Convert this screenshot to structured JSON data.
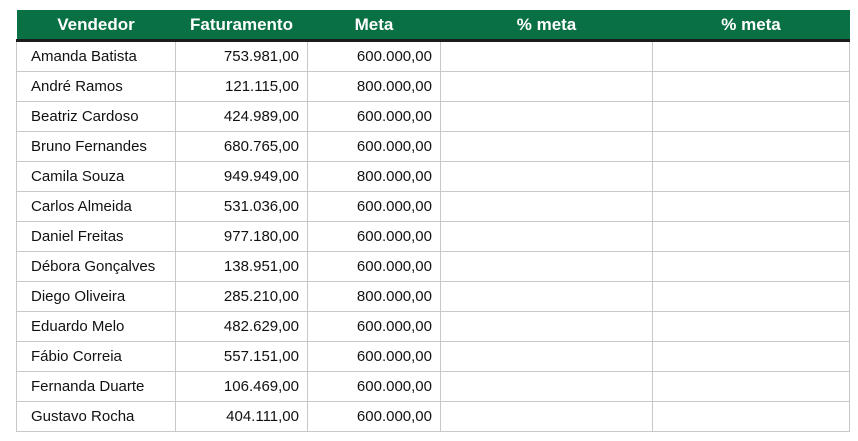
{
  "table": {
    "headers": [
      "Vendedor",
      "Faturamento",
      "Meta",
      "% meta",
      "% meta"
    ],
    "rows": [
      {
        "vendedor": "Amanda Batista",
        "faturamento": "753.981,00",
        "meta": "600.000,00",
        "pct_meta_1": "",
        "pct_meta_2": ""
      },
      {
        "vendedor": "André Ramos",
        "faturamento": "121.115,00",
        "meta": "800.000,00",
        "pct_meta_1": "",
        "pct_meta_2": ""
      },
      {
        "vendedor": "Beatriz Cardoso",
        "faturamento": "424.989,00",
        "meta": "600.000,00",
        "pct_meta_1": "",
        "pct_meta_2": ""
      },
      {
        "vendedor": "Bruno Fernandes",
        "faturamento": "680.765,00",
        "meta": "600.000,00",
        "pct_meta_1": "",
        "pct_meta_2": ""
      },
      {
        "vendedor": "Camila Souza",
        "faturamento": "949.949,00",
        "meta": "800.000,00",
        "pct_meta_1": "",
        "pct_meta_2": ""
      },
      {
        "vendedor": "Carlos Almeida",
        "faturamento": "531.036,00",
        "meta": "600.000,00",
        "pct_meta_1": "",
        "pct_meta_2": ""
      },
      {
        "vendedor": "Daniel Freitas",
        "faturamento": "977.180,00",
        "meta": "600.000,00",
        "pct_meta_1": "",
        "pct_meta_2": ""
      },
      {
        "vendedor": "Débora Gonçalves",
        "faturamento": "138.951,00",
        "meta": "600.000,00",
        "pct_meta_1": "",
        "pct_meta_2": ""
      },
      {
        "vendedor": "Diego Oliveira",
        "faturamento": "285.210,00",
        "meta": "800.000,00",
        "pct_meta_1": "",
        "pct_meta_2": ""
      },
      {
        "vendedor": "Eduardo Melo",
        "faturamento": "482.629,00",
        "meta": "600.000,00",
        "pct_meta_1": "",
        "pct_meta_2": ""
      },
      {
        "vendedor": "Fábio Correia",
        "faturamento": "557.151,00",
        "meta": "600.000,00",
        "pct_meta_1": "",
        "pct_meta_2": ""
      },
      {
        "vendedor": "Fernanda Duarte",
        "faturamento": "106.469,00",
        "meta": "600.000,00",
        "pct_meta_1": "",
        "pct_meta_2": ""
      },
      {
        "vendedor": "Gustavo Rocha",
        "faturamento": "404.111,00",
        "meta": "600.000,00",
        "pct_meta_1": "",
        "pct_meta_2": ""
      }
    ]
  },
  "colors": {
    "header_bg": "#097044",
    "header_text": "#ffffff",
    "gridline": "#c8c8c8"
  }
}
